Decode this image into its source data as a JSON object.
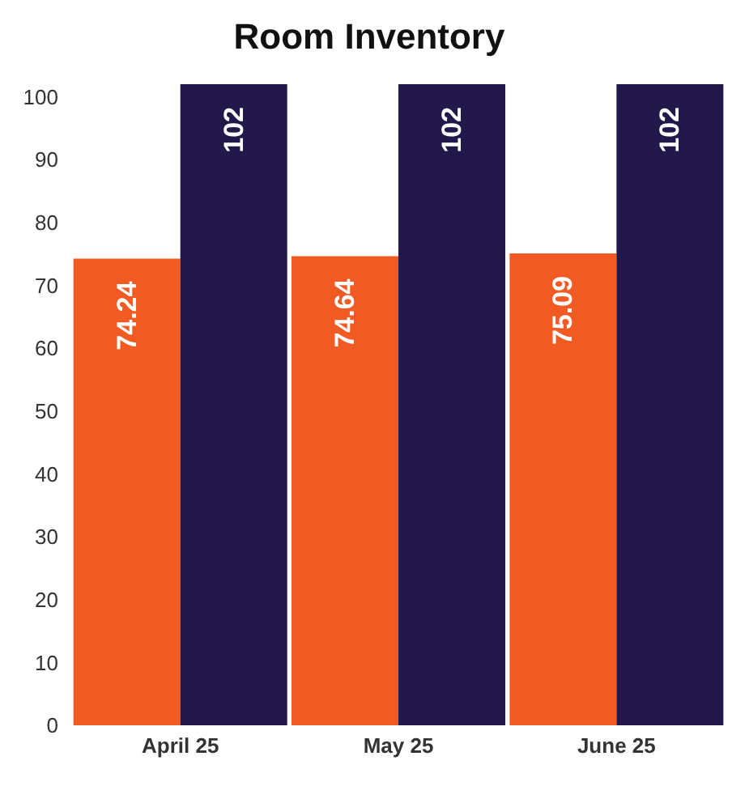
{
  "chart_data": {
    "type": "bar",
    "title": "Room Inventory",
    "categories": [
      "April 25",
      "May 25",
      "June 25"
    ],
    "series": [
      {
        "color": "#f15a22",
        "values": [
          74.24,
          74.64,
          75.09
        ]
      },
      {
        "color": "#22194a",
        "values": [
          102,
          102,
          102
        ]
      }
    ],
    "ylim": [
      0,
      102
    ],
    "yticks": [
      0,
      10,
      20,
      30,
      40,
      50,
      60,
      70,
      80,
      90,
      100
    ],
    "grid": false,
    "legend": false,
    "data_labels": true
  }
}
